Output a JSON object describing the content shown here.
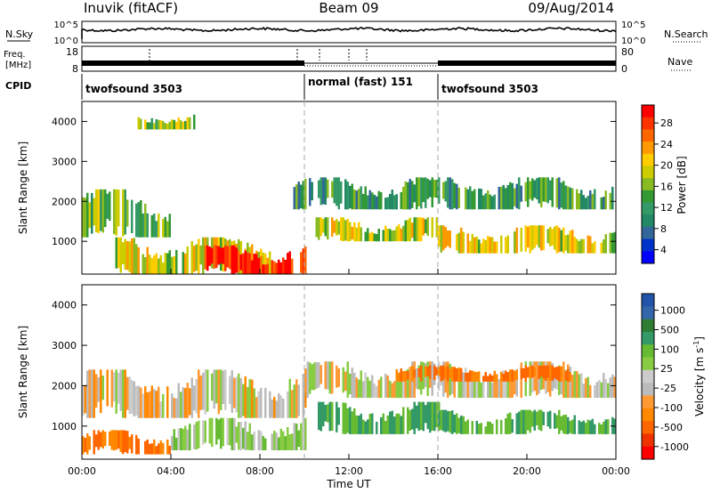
{
  "header": {
    "station": "Inuvik (fitACF)",
    "beam": "Beam 09",
    "date": "09/Aug/2014"
  },
  "param_panels": {
    "nsky_label": "N.Sky",
    "nsky_ticks": [
      "10^5",
      "10^0"
    ],
    "nsearch_label": "N.Search",
    "nsearch_ticks": [
      "10^5",
      "10^0"
    ],
    "freq_label_line1": "Freq.",
    "freq_label_line2": "[MHz]",
    "freq_ticks": [
      "18",
      "8"
    ],
    "nave_label": "Nave",
    "nave_ticks": [
      "80",
      "0"
    ],
    "cpid_label": "CPID"
  },
  "cpid_segments": [
    {
      "name": "twofsound 3503",
      "start": "00:00",
      "end": "10:00"
    },
    {
      "name": "normal (fast) 151",
      "start": "10:00",
      "end": "16:00"
    },
    {
      "name": "twofsound 3503",
      "start": "16:00",
      "end": "24:00"
    }
  ],
  "x_axis": {
    "label": "Time UT",
    "ticks": [
      "00:00",
      "04:00",
      "08:00",
      "12:00",
      "16:00",
      "20:00",
      "00:00"
    ]
  },
  "power_colorbar": {
    "label": "Power [dB]",
    "ticks": [
      "28",
      "24",
      "20",
      "16",
      "12",
      "8",
      "4"
    ],
    "colors": [
      "#ff0000",
      "#ff3300",
      "#ff6600",
      "#ff9900",
      "#ffcc00",
      "#cccc00",
      "#88bb22",
      "#339933",
      "#339966",
      "#228866",
      "#336699",
      "#0033cc",
      "#0000ff"
    ]
  },
  "velocity_colorbar": {
    "label": "Velocity [m s",
    "label_exp": "-1",
    "label_close": "]",
    "ticks": [
      "1000",
      "500",
      "100",
      "25",
      "-25",
      "-100",
      "-500",
      "-1000"
    ],
    "colors": [
      "#2255aa",
      "#3366aa",
      "#2e7d32",
      "#339966",
      "#66bb33",
      "#88cc44",
      "#cccccc",
      "#bbbbbb",
      "#ff9933",
      "#ff8800",
      "#ff6600",
      "#ee3300",
      "#ff0000"
    ]
  },
  "chart_data": [
    {
      "type": "heatmap",
      "title": "Power",
      "ylabel": "Slant Range [km]",
      "xlabel": "Time UT",
      "ylim": [
        180,
        4500
      ],
      "yticks": [
        1000,
        2000,
        3000,
        4000
      ],
      "xlim_hours": [
        0,
        24
      ],
      "colorbar_range_db": [
        0,
        30
      ],
      "regions": [
        {
          "t0": 0.0,
          "t1": 4.0,
          "r0": 1100,
          "r1": 2300,
          "level_db": 14
        },
        {
          "t0": 1.5,
          "t1": 8.5,
          "r0": 180,
          "r1": 1100,
          "level_db": 18
        },
        {
          "t0": 5.5,
          "t1": 10.0,
          "r0": 180,
          "r1": 900,
          "level_db": 29
        },
        {
          "t0": 9.5,
          "t1": 24.0,
          "r0": 1800,
          "r1": 2600,
          "level_db": 11
        },
        {
          "t0": 10.5,
          "t1": 16.0,
          "r0": 1000,
          "r1": 1600,
          "level_db": 17
        },
        {
          "t0": 16.0,
          "t1": 24.0,
          "r0": 700,
          "r1": 1400,
          "level_db": 18
        },
        {
          "t0": 2.5,
          "t1": 5.0,
          "r0": 3800,
          "r1": 4200,
          "level_db": 16
        }
      ]
    },
    {
      "type": "heatmap",
      "title": "Velocity",
      "ylabel": "Slant Range [km]",
      "xlabel": "Time UT",
      "ylim": [
        180,
        4500
      ],
      "yticks": [
        1000,
        2000,
        3000,
        4000
      ],
      "xlim_hours": [
        0,
        24
      ],
      "colorbar_range_ms": [
        -1000,
        1000
      ],
      "regions": [
        {
          "t0": 0.0,
          "t1": 10.0,
          "r0": 1200,
          "r1": 2400,
          "velocity": -15
        },
        {
          "t0": 0.0,
          "t1": 4.0,
          "r0": 300,
          "r1": 900,
          "velocity": -120
        },
        {
          "t0": 4.0,
          "t1": 10.0,
          "r0": 400,
          "r1": 1200,
          "velocity": 50
        },
        {
          "t0": 10.0,
          "t1": 24.0,
          "r0": 1700,
          "r1": 2600,
          "velocity": 0
        },
        {
          "t0": 10.5,
          "t1": 16.0,
          "r0": 800,
          "r1": 1600,
          "velocity": 150
        },
        {
          "t0": 16.0,
          "t1": 24.0,
          "r0": 800,
          "r1": 1400,
          "velocity": 140
        },
        {
          "t0": 14.0,
          "t1": 22.0,
          "r0": 2100,
          "r1": 2500,
          "velocity": -120
        }
      ]
    }
  ]
}
